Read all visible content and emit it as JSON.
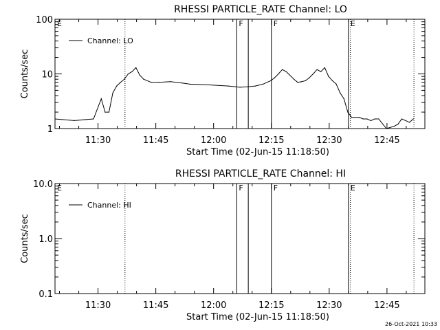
{
  "chart_data": [
    {
      "type": "line",
      "title": "RHESSI PARTICLE_RATE Channel: LO",
      "xlabel": "Start Time (02-Jun-15 11:18:50)",
      "ylabel": "Counts/sec",
      "y_scale": "log",
      "ylim": [
        1,
        100
      ],
      "xlim_minutes_after_11_18_50": [
        0,
        96
      ],
      "x_ticks": [
        "11:30",
        "11:45",
        "12:00",
        "12:15",
        "12:30",
        "12:45"
      ],
      "y_ticks": [
        "1",
        "10",
        "100"
      ],
      "legend": "Channel: LO",
      "legend_placement": "top-left",
      "grid": false,
      "markers": [
        {
          "label": "E",
          "time": "11:18:50",
          "style": "solid"
        },
        {
          "label": "",
          "time": "11:37:00",
          "style": "dotted"
        },
        {
          "label": "F",
          "time": "12:06:00",
          "style": "solid"
        },
        {
          "label": "",
          "time": "12:09:00",
          "style": "solid"
        },
        {
          "label": "F",
          "time": "12:15:00",
          "style": "solid"
        },
        {
          "label": "E",
          "time": "12:35:00",
          "style": "solid"
        },
        {
          "label": "",
          "time": "12:35:30",
          "style": "dotted"
        },
        {
          "label": "",
          "time": "12:52:00",
          "style": "dotted"
        }
      ],
      "series": [
        {
          "name": "Channel: LO",
          "x_minutes": [
            0,
            5,
            10,
            12,
            13,
            14,
            15,
            16,
            17,
            18,
            19,
            20,
            21,
            22,
            23,
            25,
            27,
            30,
            33,
            35,
            40,
            45,
            48,
            50,
            52,
            54,
            55,
            56,
            57,
            58,
            59,
            60,
            62,
            63,
            64,
            65,
            66,
            67,
            68,
            69,
            70,
            71,
            72,
            73,
            74,
            75,
            76,
            77,
            79,
            80,
            81,
            82,
            83,
            84,
            86,
            88,
            89,
            90,
            91,
            92,
            93
          ],
          "y": [
            1.5,
            1.4,
            1.5,
            3.5,
            2.0,
            2.0,
            4.5,
            6.0,
            7.0,
            8.0,
            10,
            11,
            13,
            9.5,
            8.0,
            7.0,
            7.0,
            7.2,
            6.8,
            6.5,
            6.3,
            6.0,
            5.7,
            5.8,
            6.0,
            6.5,
            7.0,
            7.5,
            8.5,
            10,
            12,
            11,
            8.0,
            7.0,
            7.2,
            7.5,
            8.5,
            10,
            12,
            11,
            13,
            9.0,
            7.5,
            6.5,
            4.5,
            3.5,
            2.0,
            1.6,
            1.6,
            1.5,
            1.5,
            1.4,
            1.5,
            1.5,
            1.0,
            1.1,
            1.2,
            1.5,
            1.4,
            1.3,
            1.5
          ]
        }
      ]
    },
    {
      "type": "line",
      "title": "RHESSI PARTICLE_RATE Channel: HI",
      "xlabel": "Start Time (02-Jun-15 11:18:50)",
      "ylabel": "Counts/sec",
      "y_scale": "log",
      "ylim": [
        0.1,
        10.0
      ],
      "xlim_minutes_after_11_18_50": [
        0,
        96
      ],
      "x_ticks": [
        "11:30",
        "11:45",
        "12:00",
        "12:15",
        "12:30",
        "12:45"
      ],
      "y_ticks": [
        "0.1",
        "1.0",
        "10.0"
      ],
      "legend": "Channel: HI",
      "legend_placement": "top-left",
      "grid": false,
      "markers": [
        {
          "label": "E",
          "time": "11:18:50",
          "style": "solid"
        },
        {
          "label": "",
          "time": "11:37:00",
          "style": "dotted"
        },
        {
          "label": "F",
          "time": "12:06:00",
          "style": "solid"
        },
        {
          "label": "",
          "time": "12:09:00",
          "style": "solid"
        },
        {
          "label": "F",
          "time": "12:15:00",
          "style": "solid"
        },
        {
          "label": "E",
          "time": "12:35:00",
          "style": "solid"
        },
        {
          "label": "",
          "time": "12:35:30",
          "style": "dotted"
        },
        {
          "label": "",
          "time": "12:52:00",
          "style": "dotted"
        }
      ],
      "series": [
        {
          "name": "Channel: HI",
          "x_minutes": [],
          "y": []
        }
      ]
    }
  ],
  "footer": {
    "timestamp": "26-Oct-2021 10:33"
  }
}
